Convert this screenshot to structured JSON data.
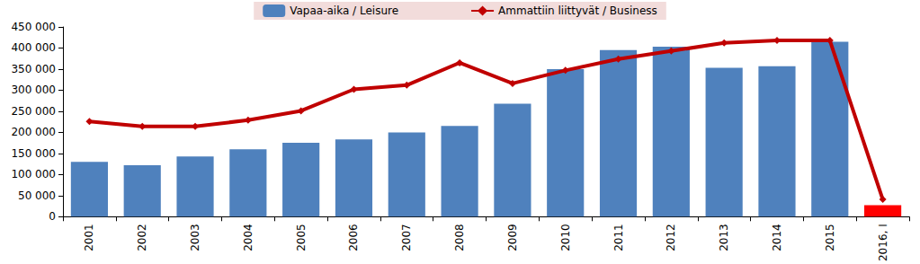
{
  "chart_data": {
    "type": "bar",
    "categories": [
      "2001",
      "2002",
      "2003",
      "2004",
      "2005",
      "2006",
      "2007",
      "2008",
      "2009",
      "2010",
      "2011",
      "2012",
      "2013",
      "2014",
      "2015",
      "2016, I"
    ],
    "series": [
      {
        "name": "Vapaa-aika / Leisure",
        "type": "bar",
        "color": "#4F81BD",
        "colors": [
          "#4F81BD",
          "#4F81BD",
          "#4F81BD",
          "#4F81BD",
          "#4F81BD",
          "#4F81BD",
          "#4F81BD",
          "#4F81BD",
          "#4F81BD",
          "#4F81BD",
          "#4F81BD",
          "#4F81BD",
          "#4F81BD",
          "#4F81BD",
          "#4F81BD",
          "#FF0000"
        ],
        "values": [
          130000,
          122000,
          143000,
          160000,
          175000,
          183000,
          200000,
          215000,
          268000,
          350000,
          395000,
          403000,
          353000,
          357000,
          415000,
          27000
        ]
      },
      {
        "name": "Ammattiin liittyvät / Business",
        "type": "line",
        "color": "#C00000",
        "marker": "diamond",
        "values": [
          226000,
          214000,
          214000,
          229000,
          251000,
          302000,
          312000,
          365000,
          316000,
          347000,
          374000,
          393000,
          412000,
          418000,
          418000,
          41000
        ]
      }
    ],
    "ylim": [
      0,
      450000
    ],
    "yticks": [
      0,
      {
        "value": 50000,
        "label": "50 000"
      },
      {
        "value": 100000,
        "label": "100 000"
      },
      {
        "value": 150000,
        "label": "150 000"
      },
      {
        "value": 200000,
        "label": "200 000"
      },
      {
        "value": 250000,
        "label": "250 000"
      },
      {
        "value": 300000,
        "label": "300 000"
      },
      {
        "value": 350000,
        "label": "350 000"
      },
      {
        "value": 400000,
        "label": "400 000"
      },
      {
        "value": 450000,
        "label": "450 000"
      }
    ],
    "grid": false,
    "legend": "top"
  }
}
